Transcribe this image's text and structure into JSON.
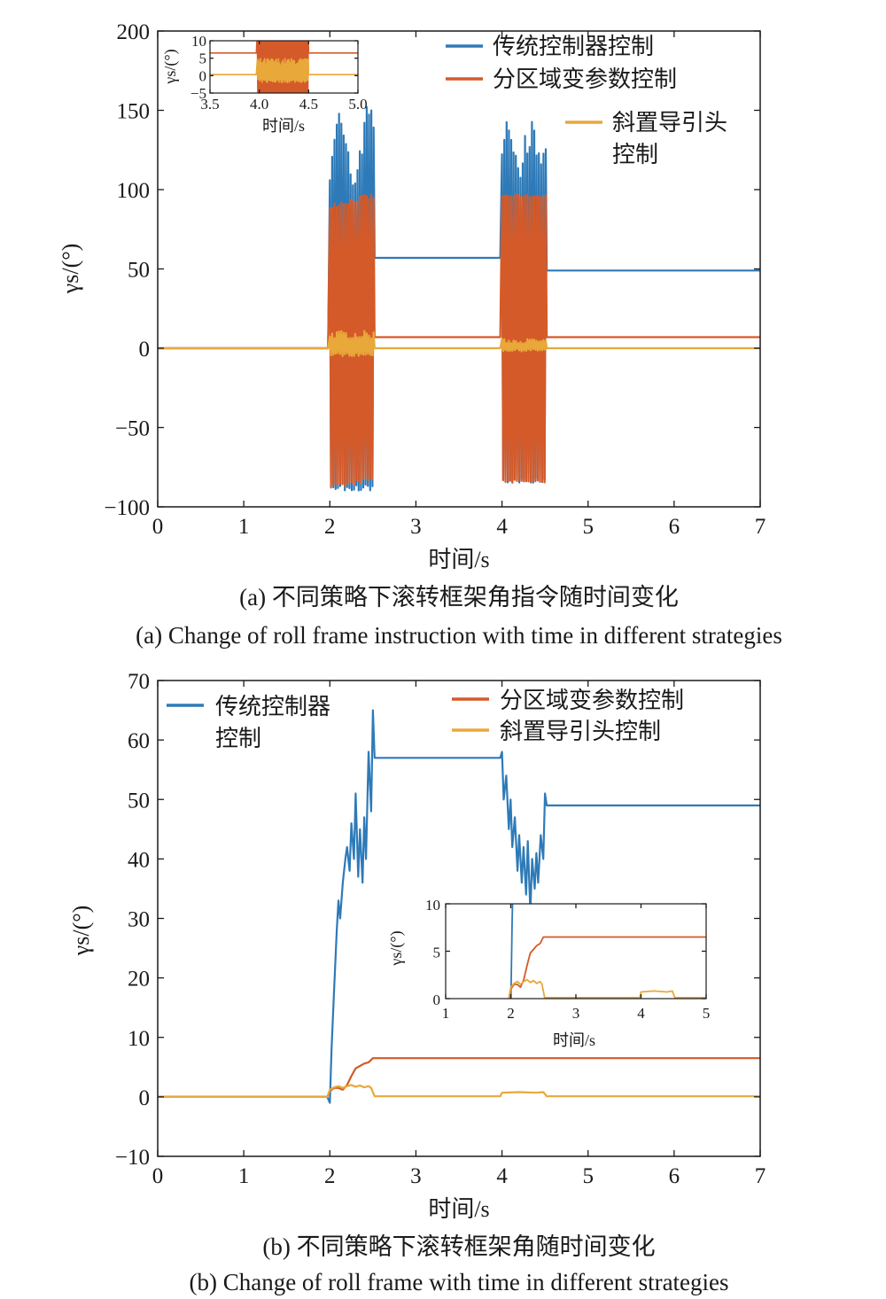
{
  "colors": {
    "traditional": "#2e7ab8",
    "zoned": "#d45a2a",
    "oblique": "#e8a83a",
    "axis": "#1a1a1a"
  },
  "chart_data": [
    {
      "id": "a",
      "type": "line",
      "caption_cn": "(a) 不同策略下滚转框架角指令随时间变化",
      "caption_en": "(a) Change of roll frame instruction with time in different strategies",
      "xlabel": "时间/s",
      "ylabel": "γs/(°)",
      "xlim": [
        0,
        7
      ],
      "ylim": [
        -100,
        200
      ],
      "xticks": [
        "0",
        "1",
        "2",
        "3",
        "4",
        "5",
        "6",
        "7"
      ],
      "yticks": [
        "−100",
        "−50",
        "0",
        "50",
        "100",
        "150",
        "200"
      ],
      "legend": [
        "传统控制器控制",
        "分区域变参数控制",
        "斜置导引头控制"
      ],
      "series": [
        {
          "name": "传统控制器控制",
          "x": [
            0,
            1.98,
            2.0,
            2.0,
            2.52,
            2.52,
            3.0,
            3.98,
            4.0,
            4.0,
            4.52,
            4.52,
            5.0,
            6.0,
            7.0
          ],
          "y": [
            0,
            0,
            0,
            "oscillation −90 to 152",
            "oscillation −90 to 152",
            57,
            57,
            57,
            57,
            "oscillation −85 to 146",
            "oscillation −85 to 146",
            49,
            49,
            49,
            49
          ]
        },
        {
          "name": "分区域变参数控制",
          "x": [
            0,
            1.98,
            2.0,
            2.52,
            2.52,
            4.0,
            4.52,
            4.52,
            7.0
          ],
          "y": [
            0,
            0,
            "oscillation −90 to 97",
            "oscillation −90 to 97",
            7,
            7,
            "oscillation −85 to 97",
            7,
            7
          ]
        },
        {
          "name": "斜置导引头控制",
          "x": [
            0,
            1.98,
            2.0,
            2.52,
            2.52,
            4.0,
            4.52,
            4.52,
            7.0
          ],
          "y": [
            0,
            0,
            "oscillation −6 to 11",
            "oscillation −6 to 11",
            0,
            0,
            "oscillation −3 to 6",
            0,
            0
          ]
        }
      ],
      "inset": {
        "xlabel": "时间/s",
        "ylabel": "γs/(°)",
        "xlim": [
          3.5,
          5.0
        ],
        "ylim": [
          -5,
          10
        ],
        "xticks": [
          "3.5",
          "4.0",
          "4.5",
          "5.0"
        ],
        "yticks": [
          "−5",
          "0",
          "5",
          "10"
        ],
        "series": [
          {
            "name": "分区域变参数控制",
            "level": 6.5,
            "oscillation_x": [
              3.98,
              4.5
            ],
            "oscillation_y": [
              -6,
              11
            ]
          },
          {
            "name": "斜置导引头控制",
            "level": 0.3,
            "oscillation_x": [
              3.98,
              4.5
            ],
            "oscillation_y": [
              -2,
              5
            ]
          }
        ]
      }
    },
    {
      "id": "b",
      "type": "line",
      "caption_cn": "(b) 不同策略下滚转框架角随时间变化",
      "caption_en": "(b) Change of roll frame with time in different strategies",
      "xlabel": "时间/s",
      "ylabel": "γs/(°)",
      "xlim": [
        0,
        7
      ],
      "ylim": [
        -10,
        70
      ],
      "xticks": [
        "0",
        "1",
        "2",
        "3",
        "4",
        "5",
        "6",
        "7"
      ],
      "yticks": [
        "−10",
        "0",
        "10",
        "20",
        "30",
        "40",
        "50",
        "60",
        "70"
      ],
      "legend": [
        "传统控制器控制",
        "分区域变参数控制",
        "斜置导引头控制"
      ],
      "series": [
        {
          "name": "传统控制器控制",
          "x": [
            0,
            1.97,
            2.0,
            2.02,
            2.05,
            2.08,
            2.1,
            2.12,
            2.15,
            2.18,
            2.2,
            2.23,
            2.25,
            2.28,
            2.3,
            2.33,
            2.35,
            2.38,
            2.4,
            2.42,
            2.45,
            2.48,
            2.5,
            2.52,
            3.0,
            3.5,
            3.98,
            4.0,
            4.02,
            4.05,
            4.08,
            4.1,
            4.12,
            4.15,
            4.18,
            4.2,
            4.23,
            4.25,
            4.28,
            4.3,
            4.33,
            4.35,
            4.38,
            4.4,
            4.42,
            4.45,
            4.48,
            4.5,
            4.52,
            5.0,
            6.0,
            7.0
          ],
          "y": [
            0,
            0,
            -1,
            8,
            18,
            28,
            33,
            30,
            36,
            40,
            42,
            38,
            46,
            40,
            51,
            37,
            45,
            36,
            47,
            40,
            58,
            48,
            65,
            57,
            57,
            57,
            57,
            58,
            50,
            54,
            45,
            50,
            42,
            47,
            38,
            44,
            36,
            42,
            34,
            43,
            31,
            40,
            35,
            41,
            36,
            44,
            40,
            51,
            49,
            49,
            49,
            49
          ]
        },
        {
          "name": "分区域变参数控制",
          "x": [
            0,
            1.97,
            2.0,
            2.05,
            2.1,
            2.15,
            2.2,
            2.25,
            2.3,
            2.35,
            2.4,
            2.45,
            2.5,
            2.52,
            3.0,
            4.0,
            5.0,
            6.0,
            7.0
          ],
          "y": [
            0,
            0,
            1,
            1.5,
            1.5,
            1.2,
            2.0,
            3.5,
            4.8,
            5.2,
            5.6,
            5.8,
            6.5,
            6.5,
            6.5,
            6.5,
            6.5,
            6.5,
            6.5
          ]
        },
        {
          "name": "斜置导引头控制",
          "x": [
            0,
            1.97,
            2.0,
            2.05,
            2.1,
            2.15,
            2.2,
            2.25,
            2.3,
            2.35,
            2.4,
            2.45,
            2.48,
            2.52,
            3.0,
            3.98,
            4.0,
            4.2,
            4.4,
            4.48,
            4.52,
            5.0,
            6.0,
            7.0
          ],
          "y": [
            0,
            0,
            1.2,
            1.6,
            1.8,
            1.5,
            1.8,
            2.0,
            1.7,
            1.9,
            1.6,
            1.8,
            1.5,
            0.1,
            0.1,
            0.1,
            0.7,
            0.8,
            0.7,
            0.8,
            0.1,
            0.1,
            0.1,
            0.1
          ]
        }
      ],
      "inset": {
        "xlabel": "时间/s",
        "ylabel": "γs/(°)",
        "xlim": [
          1,
          5
        ],
        "ylim": [
          0,
          10
        ],
        "xticks": [
          "1",
          "2",
          "3",
          "4",
          "5"
        ],
        "yticks": [
          "0",
          "5",
          "10"
        ]
      }
    }
  ]
}
